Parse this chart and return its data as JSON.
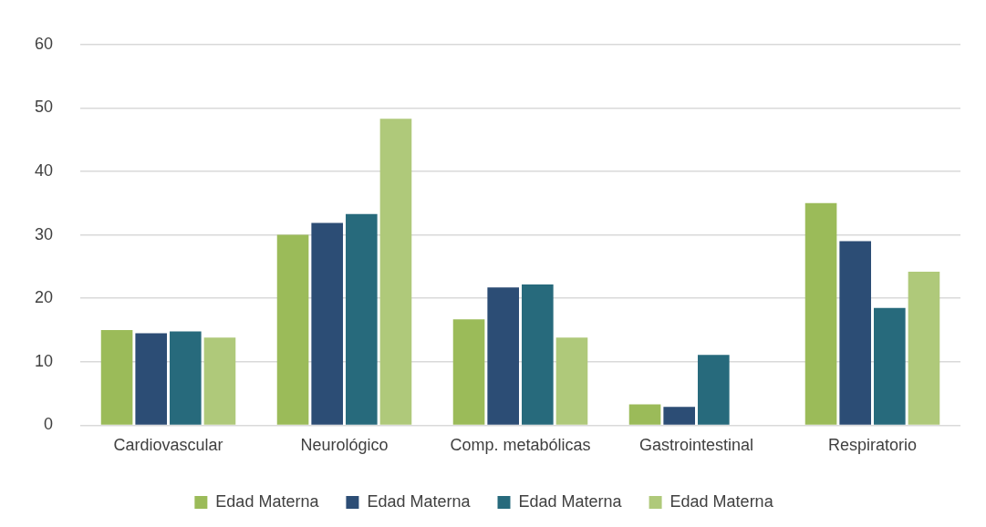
{
  "chart_data": {
    "type": "bar",
    "categories": [
      "Cardiovascular",
      "Neurológico",
      "Comp. metabólicas",
      "Gastrointestinal",
      "Respiratorio"
    ],
    "series": [
      {
        "name": "Edad Materna",
        "color": "#9bbb59",
        "values": [
          15,
          30,
          16.7,
          3.3,
          35
        ]
      },
      {
        "name": "Edad Materna",
        "color": "#2c4d75",
        "values": [
          14.5,
          31.9,
          21.7,
          2.9,
          29
        ]
      },
      {
        "name": "Edad Materna",
        "color": "#276a7c",
        "values": [
          14.8,
          33.3,
          22.2,
          11.1,
          18.5
        ]
      },
      {
        "name": "Edad Materna",
        "color": "#afc97a",
        "values": [
          13.8,
          48.3,
          13.8,
          null,
          24.2
        ]
      }
    ],
    "ylim": [
      0,
      60
    ],
    "yticks": [
      0,
      10,
      20,
      30,
      40,
      50,
      60
    ],
    "grid": "y",
    "legend": "bottom"
  }
}
